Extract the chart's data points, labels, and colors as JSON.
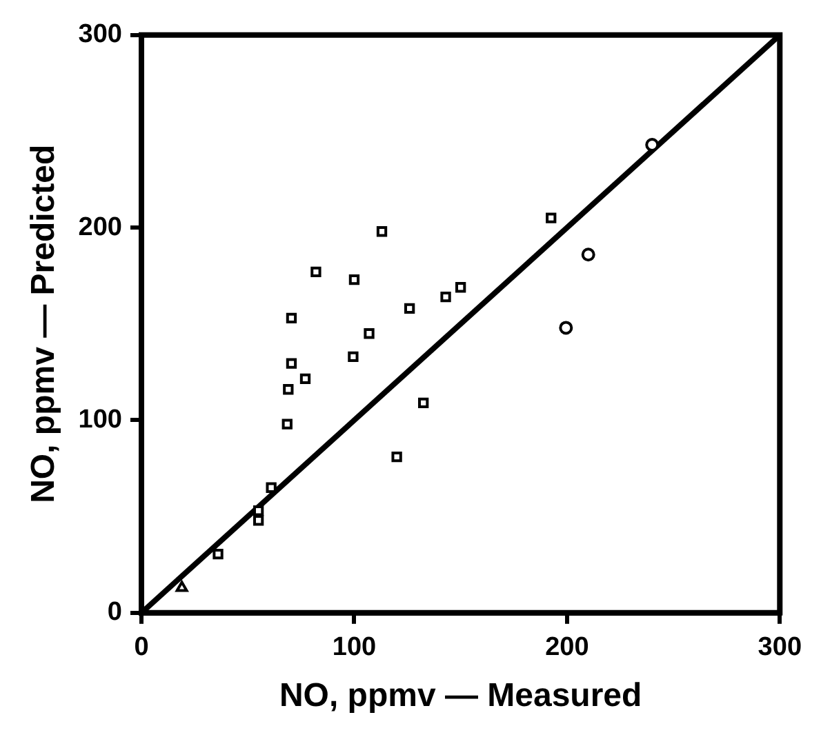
{
  "chart_data": {
    "type": "scatter",
    "xlabel": "NO, ppmv — Measured",
    "ylabel": "NO, ppmv — Predicted",
    "xlim": [
      0,
      300
    ],
    "ylim": [
      0,
      300
    ],
    "xticks": [
      0,
      100,
      200,
      300
    ],
    "yticks": [
      0,
      100,
      200,
      300
    ],
    "grid": false,
    "legend": false,
    "series": [
      {
        "marker": "square",
        "color": "#000000",
        "x": [
          192.5,
          150,
          143,
          126,
          113,
          100,
          107,
          99.5,
          82,
          70.5,
          70.5,
          77,
          69,
          68.5,
          132.5,
          120,
          61,
          55,
          55,
          36
        ],
        "values": [
          205,
          169,
          164,
          158,
          198,
          173,
          145,
          133,
          177,
          153,
          129.5,
          121.5,
          116,
          98,
          109,
          81,
          65,
          53,
          48,
          30.5
        ]
      },
      {
        "marker": "circle",
        "color": "#000000",
        "x": [
          240,
          210,
          199.5
        ],
        "values": [
          243,
          186,
          148
        ]
      },
      {
        "marker": "triangle",
        "color": "#000000",
        "x": [
          19
        ],
        "values": [
          13
        ]
      },
      {
        "type": "line",
        "marker": "none",
        "line_style": "solid",
        "color": "#000000",
        "x": [
          0,
          300
        ],
        "values": [
          0,
          300
        ]
      }
    ]
  }
}
